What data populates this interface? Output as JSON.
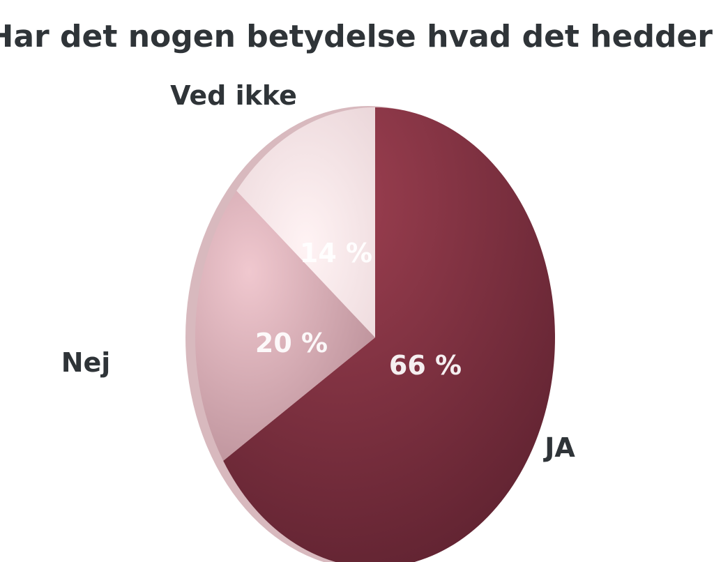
{
  "chart_data": {
    "type": "pie",
    "title": "Har det nogen betydelse hvad det hedder?",
    "slices": [
      {
        "label": "JA",
        "value": 66,
        "value_label": "66 %",
        "color": "#7a2e3d"
      },
      {
        "label": "Nej",
        "value": 20,
        "value_label": "20 %",
        "color": "#c9a0a8"
      },
      {
        "label": "Ved ikke",
        "value": 14,
        "value_label": "14 %",
        "color": "#f6e4e6"
      }
    ],
    "legend": "none"
  }
}
